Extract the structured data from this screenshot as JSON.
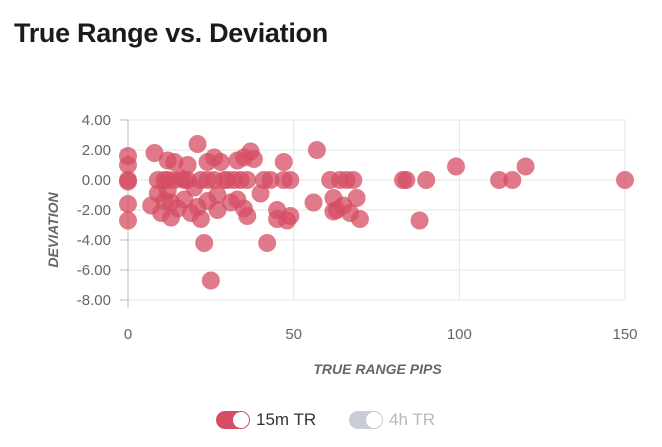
{
  "title": "True Range vs. Deviation",
  "colors": {
    "series1": "#d54e63",
    "series2_disabled": "#c8ccd4",
    "grid": "#e6e6e6",
    "text": "#666666"
  },
  "legend": [
    {
      "label": "15m TR",
      "active": true
    },
    {
      "label": "4h TR",
      "active": false
    }
  ],
  "chart_data": {
    "type": "scatter",
    "xlabel": "TRUE RANGE PIPS",
    "ylabel": "DEVIATION",
    "xlim": [
      0,
      150
    ],
    "ylim": [
      -8,
      4
    ],
    "x_ticks": [
      "0",
      "50",
      "100",
      "150"
    ],
    "y_ticks": [
      "4.00",
      "2.00",
      "0.00",
      "-2.00",
      "-4.00",
      "-6.00",
      "-8.00"
    ],
    "grid": true,
    "legend_position": "bottom-center",
    "series": [
      {
        "name": "15m TR",
        "points": [
          [
            0,
            1.6
          ],
          [
            0,
            1.0
          ],
          [
            0,
            0.0
          ],
          [
            0,
            -0.1
          ],
          [
            0,
            -1.6
          ],
          [
            0,
            -2.7
          ],
          [
            7,
            -1.7
          ],
          [
            8,
            1.8
          ],
          [
            9,
            0.0
          ],
          [
            9,
            -0.9
          ],
          [
            10,
            -2.2
          ],
          [
            11,
            0.0
          ],
          [
            11,
            -1.4
          ],
          [
            12,
            1.3
          ],
          [
            12,
            0.0
          ],
          [
            12,
            -0.7
          ],
          [
            13,
            -1.5
          ],
          [
            13,
            -2.5
          ],
          [
            14,
            1.2
          ],
          [
            14,
            0.0
          ],
          [
            15,
            -1.9
          ],
          [
            16,
            0.1
          ],
          [
            17,
            0.0
          ],
          [
            17,
            -1.3
          ],
          [
            18,
            1.0
          ],
          [
            18,
            0.0
          ],
          [
            19,
            -2.2
          ],
          [
            20,
            -0.5
          ],
          [
            21,
            2.4
          ],
          [
            21,
            -1.8
          ],
          [
            22,
            0.0
          ],
          [
            22,
            -2.6
          ],
          [
            23,
            -4.2
          ],
          [
            24,
            1.2
          ],
          [
            24,
            0.0
          ],
          [
            24,
            -1.4
          ],
          [
            25,
            -6.7
          ],
          [
            26,
            1.5
          ],
          [
            26,
            0.0
          ],
          [
            27,
            -1.0
          ],
          [
            27,
            -2.0
          ],
          [
            28,
            1.2
          ],
          [
            29,
            0.0
          ],
          [
            30,
            0.0
          ],
          [
            31,
            -1.5
          ],
          [
            32,
            0.0
          ],
          [
            33,
            1.3
          ],
          [
            33,
            -1.3
          ],
          [
            34,
            0.0
          ],
          [
            35,
            1.5
          ],
          [
            35,
            -1.9
          ],
          [
            36,
            0.0
          ],
          [
            36,
            -2.4
          ],
          [
            37,
            1.9
          ],
          [
            38,
            1.4
          ],
          [
            40,
            -0.9
          ],
          [
            41,
            0.0
          ],
          [
            42,
            -4.2
          ],
          [
            43,
            0.0
          ],
          [
            45,
            -2.0
          ],
          [
            45,
            -2.6
          ],
          [
            47,
            1.2
          ],
          [
            47,
            0.0
          ],
          [
            48,
            -2.7
          ],
          [
            49,
            0.0
          ],
          [
            49,
            -2.4
          ],
          [
            56,
            -1.5
          ],
          [
            57,
            2.0
          ],
          [
            61,
            0.0
          ],
          [
            62,
            -1.2
          ],
          [
            62,
            -2.1
          ],
          [
            63,
            -2.0
          ],
          [
            64,
            0.0
          ],
          [
            65,
            -1.7
          ],
          [
            66,
            0.0
          ],
          [
            67,
            -2.2
          ],
          [
            68,
            0.0
          ],
          [
            69,
            -1.2
          ],
          [
            70,
            -2.6
          ],
          [
            83,
            0.0
          ],
          [
            84,
            0.0
          ],
          [
            88,
            -2.7
          ],
          [
            90,
            0.0
          ],
          [
            99,
            0.9
          ],
          [
            112,
            0.0
          ],
          [
            116,
            0.0
          ],
          [
            120,
            0.9
          ],
          [
            150,
            0.0
          ]
        ]
      },
      {
        "name": "4h TR",
        "points": []
      }
    ]
  }
}
